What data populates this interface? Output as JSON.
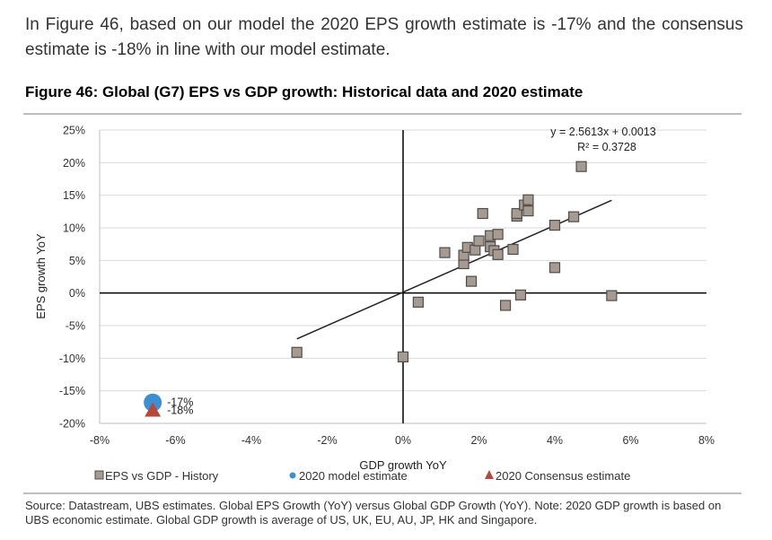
{
  "intro_text": "In Figure 46, based on our model the 2020 EPS growth estimate is -17% and the consensus estimate is -18% in line with our model estimate.",
  "figure_title": "Figure 46: Global (G7) EPS vs GDP growth: Historical data and 2020 estimate",
  "source_text": "Source:  Datastream, UBS estimates. Global EPS Growth (YoY) versus Global GDP Growth (YoY). Note: 2020 GDP growth is based on UBS economic estimate. Global GDP growth is average of US, UK, EU, AU, JP, HK and Singapore.",
  "chart_data": {
    "type": "scatter",
    "xlabel": "GDP growth YoY",
    "ylabel": "EPS growth YoY",
    "xlim": [
      -8,
      8
    ],
    "ylim": [
      -20,
      25
    ],
    "x_ticks": [
      -8,
      -6,
      -4,
      -2,
      0,
      2,
      4,
      6,
      8
    ],
    "x_tick_labels": [
      "-8%",
      "-6%",
      "-4%",
      "-2%",
      "0%",
      "2%",
      "4%",
      "6%",
      "8%"
    ],
    "y_ticks": [
      25,
      20,
      15,
      10,
      5,
      0,
      -5,
      -10,
      -15,
      -20
    ],
    "y_tick_labels": [
      "25%",
      "20%",
      "15%",
      "10%",
      "5%",
      "0%",
      "-5%",
      "-10%",
      "-15%",
      "-20%"
    ],
    "grid": "horizontal",
    "legend_position": "bottom",
    "series": [
      {
        "name": "EPS vs GDP - History",
        "marker": "square",
        "color": "#a69a91",
        "edge_color": "#4d4d4d",
        "points": [
          [
            -2.8,
            -9.1
          ],
          [
            0.0,
            -9.8
          ],
          [
            0.4,
            -1.4
          ],
          [
            1.1,
            6.2
          ],
          [
            1.6,
            4.5
          ],
          [
            1.6,
            5.8
          ],
          [
            1.7,
            7.0
          ],
          [
            1.8,
            1.8
          ],
          [
            1.9,
            6.6
          ],
          [
            2.0,
            8.0
          ],
          [
            2.1,
            12.2
          ],
          [
            2.3,
            7.1
          ],
          [
            2.3,
            8.8
          ],
          [
            2.4,
            6.5
          ],
          [
            2.5,
            5.9
          ],
          [
            2.5,
            9.0
          ],
          [
            2.7,
            -1.9
          ],
          [
            2.9,
            6.7
          ],
          [
            3.0,
            11.8
          ],
          [
            3.0,
            12.2
          ],
          [
            3.1,
            -0.3
          ],
          [
            3.2,
            13.5
          ],
          [
            3.3,
            12.6
          ],
          [
            3.3,
            14.3
          ],
          [
            4.0,
            10.4
          ],
          [
            4.0,
            3.9
          ],
          [
            4.5,
            11.7
          ],
          [
            4.7,
            19.4
          ],
          [
            5.5,
            -0.4
          ]
        ]
      },
      {
        "name": "2020 model estimate",
        "marker": "circle",
        "color": "#3d8fd1",
        "points": [
          [
            -6.6,
            -16.8
          ]
        ],
        "label": "-17%"
      },
      {
        "name": "2020 Consensus estimate",
        "marker": "triangle",
        "color": "#b34a3a",
        "points": [
          [
            -6.6,
            -18.0
          ]
        ],
        "label": "-18%"
      }
    ],
    "trendline": {
      "slope": 2.5613,
      "intercept": 0.0013,
      "x_range": [
        -2.8,
        5.5
      ],
      "equation": "y = 2.5613x + 0.0013",
      "r_squared": "R² = 0.3728"
    }
  }
}
